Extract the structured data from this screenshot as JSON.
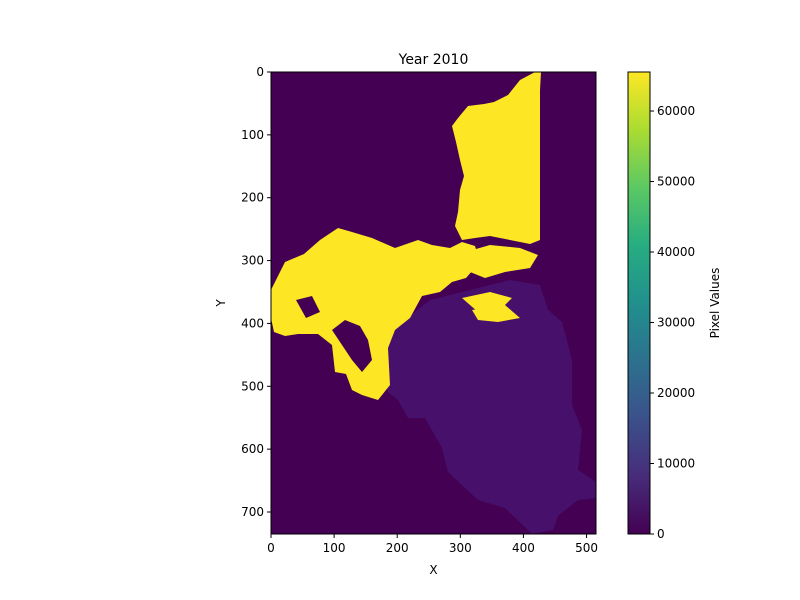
{
  "chart_data": {
    "type": "heatmap",
    "title": "Year 2010",
    "xlabel": "X",
    "ylabel": "Y",
    "xlim": [
      0,
      515
    ],
    "ylim": [
      735,
      0
    ],
    "x_ticks": [
      0,
      100,
      200,
      300,
      400,
      500
    ],
    "y_ticks": [
      0,
      100,
      200,
      300,
      400,
      500,
      600,
      700
    ],
    "grid": false,
    "colormap": "viridis",
    "colorbar": {
      "label": "Pixel Values",
      "range": [
        0,
        65535
      ],
      "ticks": [
        0,
        10000,
        20000,
        30000,
        40000,
        50000,
        60000
      ]
    },
    "background_value": 0,
    "region_values": {
      "high": 65535,
      "low": 4000
    },
    "colors": {
      "background": "#440154",
      "high": "#fde725",
      "low": "#46106b"
    }
  }
}
